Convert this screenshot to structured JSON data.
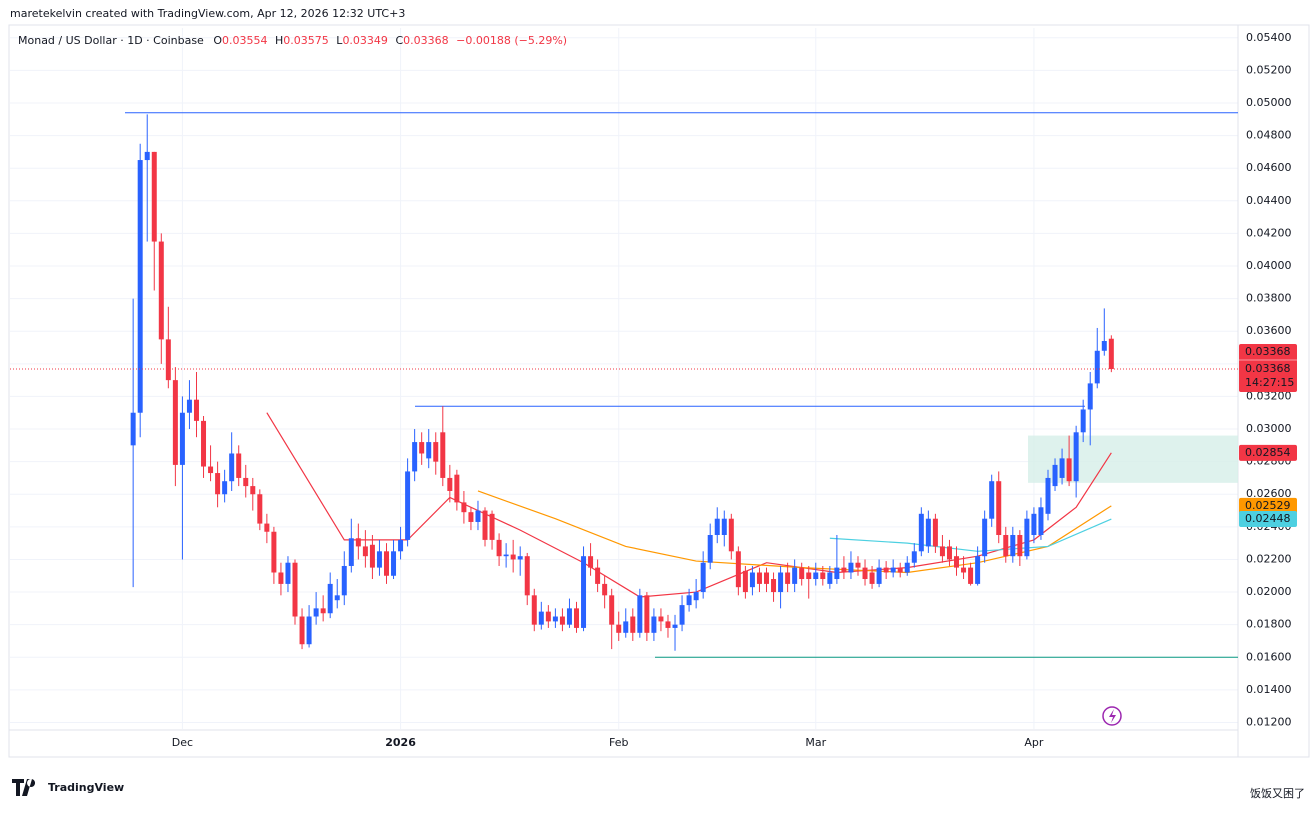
{
  "header": {
    "attribution": "maretekelvin created with TradingView.com, Apr 12, 2026 12:32 UTC+3"
  },
  "chart_data": {
    "type": "candlestick",
    "symbol": "Monad / US Dollar · 1D · Coinbase",
    "ohlc_letters": [
      "O",
      "H",
      "L",
      "C"
    ],
    "change": "−0.00188 (−5.29%)",
    "countdown": "14:27:15",
    "up_color": "#2962ff",
    "down_color": "#f23645",
    "open": [
      0.029,
      0.031,
      0.0465,
      0.047,
      0.0415,
      0.0355,
      0.033,
      0.0278,
      0.031,
      0.0318,
      0.0305,
      0.0277,
      0.0273,
      0.026,
      0.0268,
      0.0285,
      0.027,
      0.0265,
      0.026,
      0.0242,
      0.0237,
      0.0212,
      0.0205,
      0.0218,
      0.0185,
      0.0168,
      0.0185,
      0.019,
      0.0187,
      0.0195,
      0.0198,
      0.0216,
      0.0233,
      0.0228,
      0.0229,
      0.0215,
      0.0225,
      0.021,
      0.0225,
      0.0232,
      0.0274,
      0.0292,
      0.0282,
      0.0292,
      0.0298,
      0.027,
      0.0272,
      0.0255,
      0.0249,
      0.0243,
      0.025,
      0.0248,
      0.0232,
      0.0222,
      0.0223,
      0.022,
      0.0222,
      0.0198,
      0.018,
      0.0188,
      0.0182,
      0.0185,
      0.018,
      0.019,
      0.0178,
      0.0222,
      0.0215,
      0.0205,
      0.0198,
      0.018,
      0.0175,
      0.0185,
      0.0175,
      0.0198,
      0.0175,
      0.0185,
      0.0182,
      0.0178,
      0.018,
      0.0192,
      0.0195,
      0.02,
      0.0218,
      0.0235,
      0.0235,
      0.0245,
      0.0225,
      0.0213,
      0.0203,
      0.0212,
      0.0212,
      0.0208,
      0.02,
      0.0212,
      0.0205,
      0.0215,
      0.0212,
      0.0208,
      0.0212,
      0.0205,
      0.0208,
      0.0215,
      0.0212,
      0.0218,
      0.0215,
      0.0212,
      0.0205,
      0.0215,
      0.0212,
      0.0215,
      0.0212,
      0.0218,
      0.0225,
      0.0228,
      0.0245,
      0.0228,
      0.0228,
      0.0222,
      0.0215,
      0.0215,
      0.0205,
      0.0222,
      0.0245,
      0.0268,
      0.0235,
      0.0222,
      0.0235,
      0.0222,
      0.0235,
      0.0235,
      0.0248,
      0.0265,
      0.027,
      0.0282,
      0.0268,
      0.0298,
      0.0312,
      0.0328,
      0.0348,
      0.03554
    ],
    "high": [
      0.038,
      0.0475,
      0.0493,
      0.047,
      0.042,
      0.0375,
      0.0338,
      0.032,
      0.033,
      0.0335,
      0.0308,
      0.029,
      0.028,
      0.0275,
      0.0298,
      0.029,
      0.0278,
      0.027,
      0.0263,
      0.0248,
      0.024,
      0.0218,
      0.0222,
      0.022,
      0.019,
      0.0192,
      0.02,
      0.0198,
      0.0212,
      0.0208,
      0.0225,
      0.0245,
      0.0242,
      0.0238,
      0.0235,
      0.0232,
      0.023,
      0.0232,
      0.024,
      0.0282,
      0.03,
      0.0298,
      0.03,
      0.0298,
      0.0314,
      0.0278,
      0.0275,
      0.0262,
      0.0252,
      0.0256,
      0.0252,
      0.025,
      0.0236,
      0.023,
      0.0232,
      0.0228,
      0.0224,
      0.0202,
      0.0194,
      0.0192,
      0.019,
      0.019,
      0.0196,
      0.0194,
      0.0228,
      0.023,
      0.022,
      0.021,
      0.0202,
      0.0188,
      0.019,
      0.019,
      0.0202,
      0.02,
      0.019,
      0.019,
      0.0186,
      0.0186,
      0.0198,
      0.0202,
      0.0208,
      0.0225,
      0.0242,
      0.0252,
      0.025,
      0.0248,
      0.0228,
      0.0216,
      0.0216,
      0.0215,
      0.0215,
      0.0212,
      0.0216,
      0.0218,
      0.022,
      0.0218,
      0.0216,
      0.0218,
      0.0216,
      0.0216,
      0.0235,
      0.0222,
      0.0225,
      0.0222,
      0.022,
      0.0216,
      0.022,
      0.0219,
      0.022,
      0.0218,
      0.0222,
      0.023,
      0.0252,
      0.025,
      0.0248,
      0.0235,
      0.0232,
      0.0228,
      0.0222,
      0.0218,
      0.0228,
      0.025,
      0.0272,
      0.0274,
      0.024,
      0.024,
      0.0238,
      0.025,
      0.0252,
      0.0258,
      0.0275,
      0.0282,
      0.0288,
      0.0296,
      0.0302,
      0.0318,
      0.0335,
      0.0362,
      0.0374,
      0.03575
    ],
    "low": [
      0.0203,
      0.0295,
      0.0415,
      0.0385,
      0.034,
      0.0325,
      0.0265,
      0.022,
      0.03,
      0.0295,
      0.027,
      0.0268,
      0.0252,
      0.0255,
      0.0262,
      0.0265,
      0.0258,
      0.025,
      0.0238,
      0.023,
      0.0205,
      0.0198,
      0.02,
      0.018,
      0.0165,
      0.0166,
      0.018,
      0.0182,
      0.0184,
      0.019,
      0.0192,
      0.0212,
      0.022,
      0.0215,
      0.0208,
      0.021,
      0.0205,
      0.0208,
      0.022,
      0.0228,
      0.0268,
      0.0278,
      0.0276,
      0.0272,
      0.0265,
      0.0255,
      0.025,
      0.0242,
      0.0238,
      0.0238,
      0.0228,
      0.0226,
      0.0216,
      0.0215,
      0.0212,
      0.021,
      0.0192,
      0.0176,
      0.0177,
      0.0178,
      0.0178,
      0.0176,
      0.0178,
      0.0175,
      0.0176,
      0.021,
      0.02,
      0.019,
      0.0165,
      0.017,
      0.0172,
      0.017,
      0.0172,
      0.017,
      0.017,
      0.0176,
      0.0172,
      0.0164,
      0.0176,
      0.0188,
      0.019,
      0.0196,
      0.0214,
      0.023,
      0.0228,
      0.022,
      0.0198,
      0.0196,
      0.0198,
      0.02,
      0.02,
      0.0194,
      0.019,
      0.02,
      0.02,
      0.0204,
      0.0196,
      0.0204,
      0.0204,
      0.0202,
      0.0205,
      0.0208,
      0.0208,
      0.021,
      0.0204,
      0.0202,
      0.0203,
      0.0208,
      0.0209,
      0.0209,
      0.021,
      0.0215,
      0.0222,
      0.0224,
      0.0224,
      0.0218,
      0.0216,
      0.021,
      0.0208,
      0.0204,
      0.0204,
      0.0218,
      0.024,
      0.023,
      0.0218,
      0.0218,
      0.0216,
      0.022,
      0.023,
      0.0232,
      0.0244,
      0.0262,
      0.0266,
      0.0265,
      0.0258,
      0.0292,
      0.029,
      0.0325,
      0.0345,
      0.03349
    ],
    "close": [
      0.031,
      0.0465,
      0.047,
      0.0415,
      0.0355,
      0.033,
      0.0278,
      0.031,
      0.0318,
      0.0305,
      0.0277,
      0.0273,
      0.026,
      0.0268,
      0.0285,
      0.027,
      0.0265,
      0.026,
      0.0242,
      0.0237,
      0.0212,
      0.0205,
      0.0218,
      0.0185,
      0.0168,
      0.0185,
      0.019,
      0.0187,
      0.0205,
      0.0198,
      0.0216,
      0.0233,
      0.0228,
      0.0222,
      0.0215,
      0.0225,
      0.021,
      0.0225,
      0.0232,
      0.0274,
      0.0292,
      0.0285,
      0.0292,
      0.028,
      0.027,
      0.0262,
      0.0255,
      0.0249,
      0.0243,
      0.025,
      0.0232,
      0.0232,
      0.0222,
      0.0223,
      0.022,
      0.0222,
      0.0198,
      0.018,
      0.0188,
      0.0182,
      0.0185,
      0.018,
      0.019,
      0.0178,
      0.0222,
      0.0215,
      0.0205,
      0.0198,
      0.018,
      0.0175,
      0.0182,
      0.0175,
      0.0198,
      0.0175,
      0.0185,
      0.0182,
      0.0178,
      0.018,
      0.0192,
      0.0198,
      0.02,
      0.0218,
      0.0235,
      0.0245,
      0.0245,
      0.0225,
      0.0203,
      0.02,
      0.0212,
      0.0205,
      0.0205,
      0.02,
      0.0212,
      0.0205,
      0.0215,
      0.0208,
      0.0208,
      0.0212,
      0.0208,
      0.0212,
      0.0215,
      0.0212,
      0.0218,
      0.0215,
      0.0208,
      0.0205,
      0.0215,
      0.0212,
      0.0215,
      0.0212,
      0.0218,
      0.0225,
      0.0248,
      0.0245,
      0.0228,
      0.0222,
      0.022,
      0.0215,
      0.0212,
      0.0205,
      0.0222,
      0.0245,
      0.0268,
      0.0235,
      0.0222,
      0.0235,
      0.0222,
      0.0245,
      0.0248,
      0.0252,
      0.027,
      0.0278,
      0.0282,
      0.0268,
      0.0298,
      0.0312,
      0.0328,
      0.0348,
      0.0354,
      0.03368
    ],
    "moving_averages": [
      {
        "color": "#f23645",
        "x": [
          19,
          30,
          39,
          45,
          55,
          64,
          72,
          80,
          90,
          100,
          110,
          120,
          128,
          134,
          139
        ],
        "values": [
          0.031,
          0.0232,
          0.0232,
          0.0258,
          0.0238,
          0.0218,
          0.0197,
          0.02,
          0.0218,
          0.0212,
          0.0215,
          0.0222,
          0.0232,
          0.0252,
          0.02854
        ]
      },
      {
        "color": "#ff9800",
        "x": [
          49,
          60,
          70,
          80,
          95,
          110,
          120,
          130,
          139
        ],
        "values": [
          0.0262,
          0.0245,
          0.0228,
          0.0219,
          0.0215,
          0.0212,
          0.0218,
          0.0228,
          0.02529
        ]
      },
      {
        "color": "#4dd0e1",
        "x": [
          99,
          110,
          120,
          130,
          139
        ],
        "values": [
          0.0233,
          0.023,
          0.0225,
          0.0228,
          0.02448
        ]
      }
    ],
    "levels": [
      {
        "value": 0.0494,
        "color": "#2962ff"
      },
      {
        "value": 0.0314,
        "color": "#2962ff"
      },
      {
        "value": 0.016,
        "color": "#089981"
      }
    ],
    "zone": [
      0.0267,
      0.0296
    ],
    "xlim": [
      -17.5,
      157
    ],
    "xticks": [
      {
        "value": 7,
        "label": "Dec"
      },
      {
        "value": 38,
        "label": "2026"
      },
      {
        "value": 69,
        "label": "Feb"
      },
      {
        "value": 97,
        "label": "Mar"
      },
      {
        "value": 128,
        "label": "Apr"
      }
    ],
    "ylim": [
      0.0116,
      0.0546
    ],
    "yticks": [
      {
        "value": 0.012,
        "label": "0.01200"
      },
      {
        "value": 0.014,
        "label": "0.01400"
      },
      {
        "value": 0.016,
        "label": "0.01600"
      },
      {
        "value": 0.018,
        "label": "0.01800"
      },
      {
        "value": 0.02,
        "label": "0.02000"
      },
      {
        "value": 0.022,
        "label": "0.02200"
      },
      {
        "value": 0.024,
        "label": "0.02400"
      },
      {
        "value": 0.026,
        "label": "0.02600"
      },
      {
        "value": 0.028,
        "label": "0.02800"
      },
      {
        "value": 0.03,
        "label": "0.03000"
      },
      {
        "value": 0.032,
        "label": "0.03200"
      },
      {
        "value": 0.034,
        "label": "0.03400"
      },
      {
        "value": 0.036,
        "label": "0.03600"
      },
      {
        "value": 0.038,
        "label": "0.03800"
      },
      {
        "value": 0.04,
        "label": "0.04000"
      },
      {
        "value": 0.042,
        "label": "0.04200"
      },
      {
        "value": 0.044,
        "label": "0.04400"
      },
      {
        "value": 0.046,
        "label": "0.04600"
      },
      {
        "value": 0.048,
        "label": "0.04800"
      },
      {
        "value": 0.05,
        "label": "0.05000"
      },
      {
        "value": 0.052,
        "label": "0.05200"
      },
      {
        "value": 0.054,
        "label": "0.05400"
      }
    ],
    "grid": true
  },
  "footer": {
    "logo": "TradingView",
    "watermark": "饭饭又困了"
  }
}
